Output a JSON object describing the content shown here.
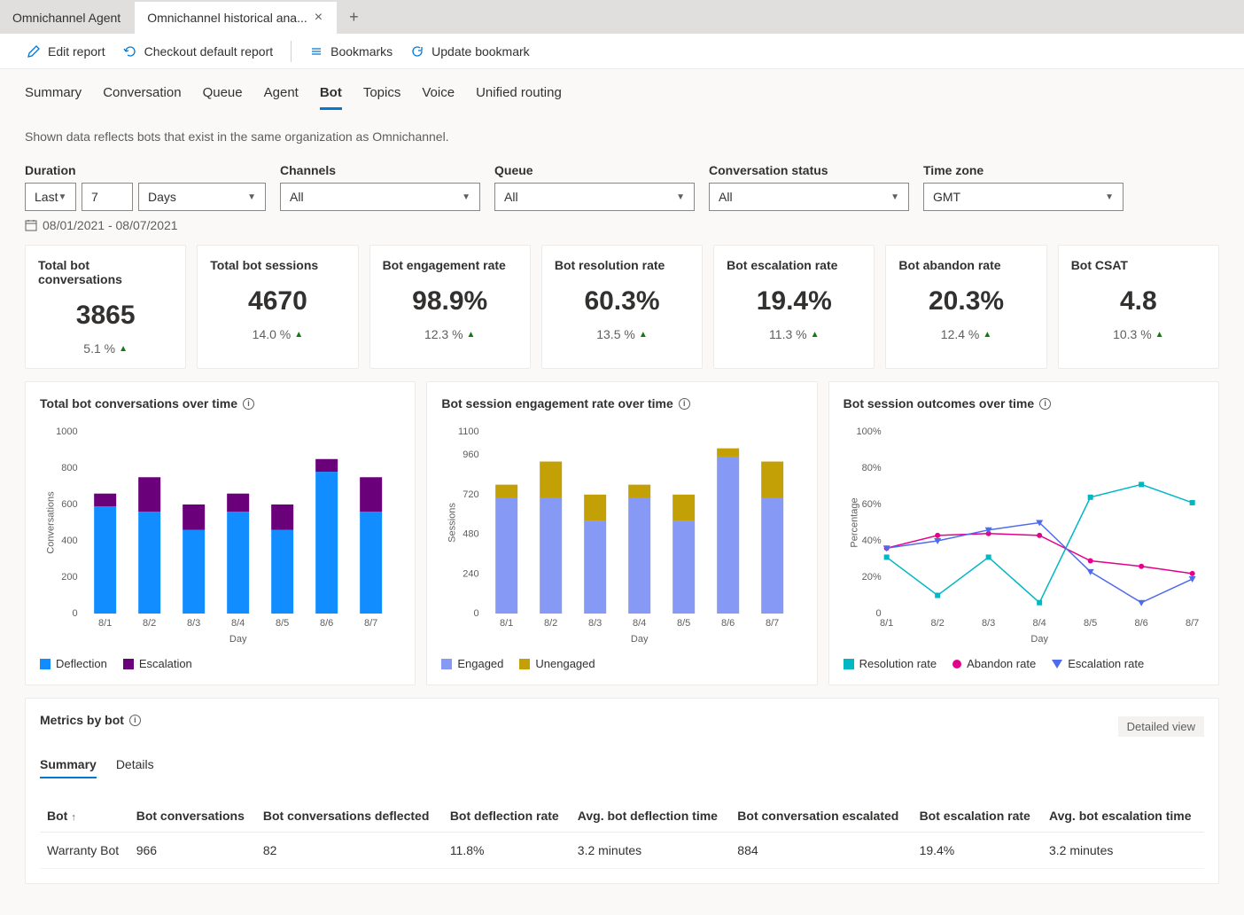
{
  "tabs": {
    "inactive": "Omnichannel Agent",
    "active": "Omnichannel historical ana..."
  },
  "toolbar": {
    "edit": "Edit report",
    "checkout": "Checkout default report",
    "bookmarks": "Bookmarks",
    "update": "Update bookmark"
  },
  "nav": [
    "Summary",
    "Conversation",
    "Queue",
    "Agent",
    "Bot",
    "Topics",
    "Voice",
    "Unified routing"
  ],
  "nav_active": "Bot",
  "help_text": "Shown data reflects bots that exist in the same organization as Omnichannel.",
  "filters": {
    "duration_label": "Duration",
    "duration_prefix": "Last",
    "duration_value": "7",
    "duration_unit": "Days",
    "channels_label": "Channels",
    "channels_value": "All",
    "queue_label": "Queue",
    "queue_value": "All",
    "status_label": "Conversation status",
    "status_value": "All",
    "tz_label": "Time zone",
    "tz_value": "GMT"
  },
  "date_range": "08/01/2021 - 08/07/2021",
  "kpis": [
    {
      "label": "Total bot conversations",
      "value": "3865",
      "trend": "5.1 %"
    },
    {
      "label": "Total bot sessions",
      "value": "4670",
      "trend": "14.0 %"
    },
    {
      "label": "Bot engagement rate",
      "value": "98.9%",
      "trend": "12.3 %"
    },
    {
      "label": "Bot resolution rate",
      "value": "60.3%",
      "trend": "13.5 %"
    },
    {
      "label": "Bot escalation rate",
      "value": "19.4%",
      "trend": "11.3 %"
    },
    {
      "label": "Bot abandon rate",
      "value": "20.3%",
      "trend": "12.4 %"
    },
    {
      "label": "Bot CSAT",
      "value": "4.8",
      "trend": "10.3 %"
    }
  ],
  "chart1": {
    "title": "Total bot conversations over time",
    "type": "stacked-bar",
    "xlabel": "Day",
    "ylabel": "Conversations",
    "categories": [
      "8/1",
      "8/2",
      "8/3",
      "8/4",
      "8/5",
      "8/6",
      "8/7"
    ],
    "yticks": [
      0,
      200,
      400,
      600,
      800,
      1000
    ],
    "series": [
      {
        "name": "Deflection",
        "color": "#118dff",
        "vals": [
          590,
          560,
          460,
          560,
          460,
          780,
          560
        ]
      },
      {
        "name": "Escalation",
        "color": "#6b007b",
        "vals": [
          70,
          190,
          140,
          100,
          140,
          70,
          190
        ]
      }
    ]
  },
  "chart2": {
    "title": "Bot session engagement rate over time",
    "type": "stacked-bar",
    "xlabel": "Day",
    "ylabel": "Sessions",
    "categories": [
      "8/1",
      "8/2",
      "8/3",
      "8/4",
      "8/5",
      "8/6",
      "8/7"
    ],
    "yticks": [
      0,
      240,
      480,
      720,
      960,
      1100
    ],
    "series": [
      {
        "name": "Engaged",
        "color": "#8699f4",
        "vals": [
          700,
          700,
          560,
          700,
          560,
          950,
          700
        ]
      },
      {
        "name": "Unengaged",
        "color": "#c4a007",
        "vals": [
          80,
          220,
          160,
          80,
          160,
          50,
          220
        ]
      }
    ]
  },
  "chart3": {
    "title": "Bot session outcomes over time",
    "type": "line",
    "xlabel": "Day",
    "ylabel": "Percentage",
    "categories": [
      "8/1",
      "8/2",
      "8/3",
      "8/4",
      "8/5",
      "8/6",
      "8/7"
    ],
    "yticks": [
      "0",
      "20%",
      "40%",
      "60%",
      "80%",
      "100%"
    ],
    "ytops": [
      0,
      20,
      40,
      60,
      80,
      100
    ],
    "series": [
      {
        "name": "Resolution rate",
        "color": "#00b7c3",
        "marker": "square",
        "vals": [
          31,
          10,
          31,
          6,
          64,
          71,
          61
        ]
      },
      {
        "name": "Abandon rate",
        "color": "#e3008c",
        "marker": "circle",
        "vals": [
          36,
          43,
          44,
          43,
          29,
          26,
          22
        ]
      },
      {
        "name": "Escalation rate",
        "color": "#4f6bed",
        "marker": "triangle",
        "vals": [
          36,
          40,
          46,
          50,
          23,
          6,
          19
        ]
      }
    ]
  },
  "table": {
    "title": "Metrics by bot",
    "detailed": "Detailed view",
    "tabs": [
      "Summary",
      "Details"
    ],
    "tab_active": "Summary",
    "columns": [
      "Bot",
      "Bot conversations",
      "Bot conversations deflected",
      "Bot deflection rate",
      "Avg. bot deflection time",
      "Bot conversation escalated",
      "Bot escalation rate",
      "Avg. bot escalation time"
    ],
    "rows": [
      [
        "Warranty Bot",
        "966",
        "82",
        "11.8%",
        "3.2 minutes",
        "884",
        "19.4%",
        "3.2 minutes"
      ]
    ]
  }
}
